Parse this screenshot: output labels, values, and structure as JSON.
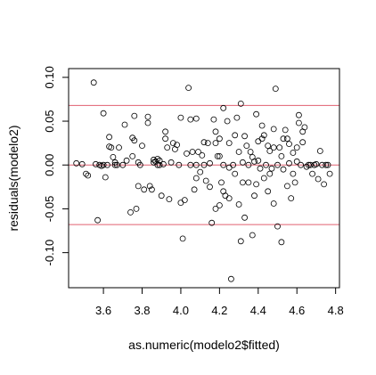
{
  "chart_data": {
    "type": "scatter",
    "title": "",
    "xlabel": "as.numeric(modelo2$fitted)",
    "ylabel": "residuals(modelo2)",
    "xlim": [
      3.42,
      4.82
    ],
    "ylim": [
      -0.14,
      0.11
    ],
    "xticks": [
      "3.6",
      "3.8",
      "4.0",
      "4.2",
      "4.4",
      "4.6",
      "4.8"
    ],
    "yticks": [
      "-0.10",
      "-0.05",
      "0.00",
      "0.05",
      "0.10"
    ],
    "hlines": [
      {
        "y": 0.068,
        "color": "#e06070"
      },
      {
        "y": 0.0,
        "color": "#e06070"
      },
      {
        "y": -0.068,
        "color": "#e06070"
      }
    ],
    "point_color": "#000000",
    "grid": false,
    "points": [
      [
        3.46,
        0.002
      ],
      [
        3.49,
        0.001
      ],
      [
        3.51,
        -0.01
      ],
      [
        3.52,
        -0.012
      ],
      [
        3.55,
        0.094
      ],
      [
        3.56,
        0.001
      ],
      [
        3.57,
        -0.063
      ],
      [
        3.58,
        0.0
      ],
      [
        3.59,
        -0.001
      ],
      [
        3.6,
        0.059
      ],
      [
        3.6,
        0.0
      ],
      [
        3.61,
        -0.014
      ],
      [
        3.62,
        0.0
      ],
      [
        3.63,
        0.021
      ],
      [
        3.63,
        0.032
      ],
      [
        3.64,
        0.02
      ],
      [
        3.65,
        0.009
      ],
      [
        3.66,
        0.003
      ],
      [
        3.66,
        0.0
      ],
      [
        3.67,
        0.0
      ],
      [
        3.68,
        0.02
      ],
      [
        3.7,
        0.0
      ],
      [
        3.71,
        0.046
      ],
      [
        3.72,
        0.005
      ],
      [
        3.74,
        -0.054
      ],
      [
        3.75,
        0.031
      ],
      [
        3.75,
        0.01
      ],
      [
        3.76,
        0.056
      ],
      [
        3.76,
        0.028
      ],
      [
        3.77,
        -0.05
      ],
      [
        3.78,
        -0.024
      ],
      [
        3.78,
        0.003
      ],
      [
        3.79,
        0.0
      ],
      [
        3.8,
        0.022
      ],
      [
        3.81,
        -0.028
      ],
      [
        3.83,
        0.055
      ],
      [
        3.83,
        0.048
      ],
      [
        3.84,
        -0.024
      ],
      [
        3.85,
        -0.028
      ],
      [
        3.86,
        0.003
      ],
      [
        3.86,
        0.006
      ],
      [
        3.87,
        0.004
      ],
      [
        3.88,
        0.0
      ],
      [
        3.88,
        0.007
      ],
      [
        3.89,
        0.005
      ],
      [
        3.89,
        0.0
      ],
      [
        3.9,
        -0.035
      ],
      [
        3.91,
        0.001
      ],
      [
        3.92,
        0.03
      ],
      [
        3.92,
        0.038
      ],
      [
        3.93,
        0.02
      ],
      [
        3.94,
        -0.039
      ],
      [
        3.95,
        0.003
      ],
      [
        3.96,
        0.025
      ],
      [
        3.97,
        0.018
      ],
      [
        3.98,
        0.023
      ],
      [
        3.99,
        0.0
      ],
      [
        4.0,
        -0.043
      ],
      [
        4.0,
        0.054
      ],
      [
        4.01,
        -0.084
      ],
      [
        4.02,
        -0.04
      ],
      [
        4.03,
        0.013
      ],
      [
        4.04,
        0.088
      ],
      [
        4.05,
        0.0
      ],
      [
        4.05,
        0.052
      ],
      [
        4.06,
        0.015
      ],
      [
        4.07,
        -0.028
      ],
      [
        4.08,
        0.053
      ],
      [
        4.08,
        0.0
      ],
      [
        4.09,
        0.015
      ],
      [
        4.1,
        -0.008
      ],
      [
        4.11,
        0.011
      ],
      [
        4.12,
        0.026
      ],
      [
        4.13,
        -0.018
      ],
      [
        4.14,
        0.025
      ],
      [
        4.15,
        -0.025
      ],
      [
        4.16,
        -0.066
      ],
      [
        4.17,
        0.052
      ],
      [
        4.18,
        0.038
      ],
      [
        4.18,
        -0.05
      ],
      [
        4.19,
        0.01
      ],
      [
        4.2,
        -0.046
      ],
      [
        4.2,
        0.03
      ],
      [
        4.21,
        -0.02
      ],
      [
        4.22,
        0.065
      ],
      [
        4.22,
        0.0
      ],
      [
        4.23,
        -0.035
      ],
      [
        4.24,
        0.05
      ],
      [
        4.25,
        -0.003
      ],
      [
        4.25,
        -0.038
      ],
      [
        4.26,
        -0.13
      ],
      [
        4.27,
        0.0
      ],
      [
        4.28,
        0.034
      ],
      [
        4.29,
        0.054
      ],
      [
        4.3,
        -0.045
      ],
      [
        4.31,
        0.07
      ],
      [
        4.31,
        -0.087
      ],
      [
        4.32,
        0.003
      ],
      [
        4.33,
        0.033
      ],
      [
        4.33,
        -0.06
      ],
      [
        4.34,
        0.022
      ],
      [
        4.35,
        -0.02
      ],
      [
        4.36,
        0.015
      ],
      [
        4.37,
        -0.08
      ],
      [
        4.37,
        0.009
      ],
      [
        4.38,
        0.004
      ],
      [
        4.39,
        0.058
      ],
      [
        4.39,
        -0.022
      ],
      [
        4.4,
        0.027
      ],
      [
        4.41,
        -0.004
      ],
      [
        4.42,
        0.03
      ],
      [
        4.43,
        -0.015
      ],
      [
        4.43,
        0.034
      ],
      [
        4.44,
        0.0
      ],
      [
        4.45,
        -0.03
      ],
      [
        4.46,
        0.016
      ],
      [
        4.47,
        -0.004
      ],
      [
        4.48,
        0.041
      ],
      [
        4.48,
        -0.044
      ],
      [
        4.49,
        0.087
      ],
      [
        4.5,
        0.0
      ],
      [
        4.5,
        -0.07
      ],
      [
        4.51,
        0.02
      ],
      [
        4.52,
        -0.088
      ],
      [
        4.53,
        0.03
      ],
      [
        4.53,
        -0.005
      ],
      [
        4.54,
        0.04
      ],
      [
        4.55,
        -0.024
      ],
      [
        4.56,
        0.002
      ],
      [
        4.56,
        0.024
      ],
      [
        4.57,
        -0.038
      ],
      [
        4.58,
        0.014
      ],
      [
        4.59,
        -0.02
      ],
      [
        4.6,
        0.004
      ],
      [
        4.61,
        0.048
      ],
      [
        4.61,
        0.057
      ],
      [
        4.62,
        0.0
      ],
      [
        4.63,
        0.038
      ],
      [
        4.63,
        0.026
      ],
      [
        4.64,
        0.043
      ],
      [
        4.65,
        -0.002
      ],
      [
        4.66,
        0.0
      ],
      [
        4.67,
        0.0
      ],
      [
        4.68,
        -0.01
      ],
      [
        4.69,
        0.0
      ],
      [
        4.7,
        0.001
      ],
      [
        4.71,
        -0.016
      ],
      [
        4.72,
        0.016
      ],
      [
        4.73,
        0.0
      ],
      [
        4.74,
        -0.022
      ],
      [
        4.75,
        0.0
      ],
      [
        4.76,
        0.0
      ],
      [
        4.77,
        -0.01
      ],
      [
        4.3,
        0.015
      ],
      [
        4.35,
        0.0
      ],
      [
        4.28,
        -0.01
      ],
      [
        4.4,
        0.005
      ],
      [
        4.45,
        0.022
      ],
      [
        4.2,
        0.01
      ],
      [
        4.15,
        0.002
      ],
      [
        4.25,
        0.025
      ],
      [
        4.22,
        -0.03
      ],
      [
        4.32,
        -0.02
      ],
      [
        4.38,
        -0.035
      ],
      [
        4.42,
        0.045
      ],
      [
        4.46,
        -0.01
      ],
      [
        4.48,
        0.02
      ],
      [
        4.52,
        0.01
      ],
      [
        4.55,
        0.03
      ],
      [
        4.58,
        -0.01
      ],
      [
        4.6,
        0.02
      ],
      [
        4.18,
        0.025
      ],
      [
        4.12,
        0.0
      ],
      [
        4.08,
        -0.015
      ]
    ]
  }
}
